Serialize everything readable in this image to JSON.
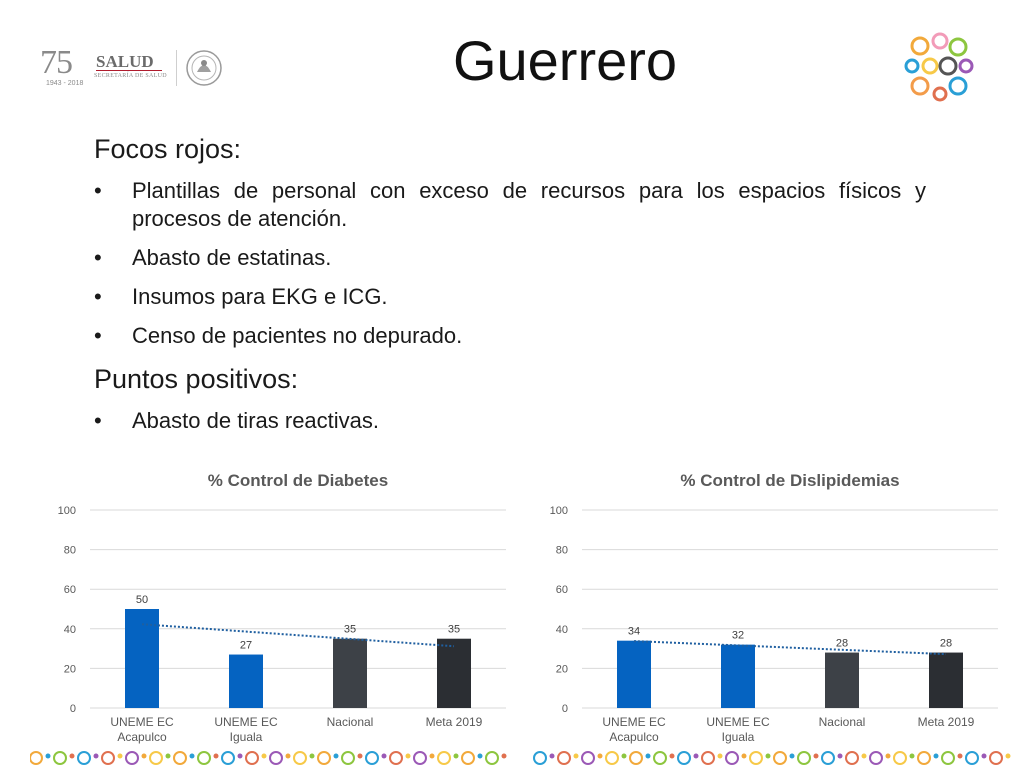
{
  "header": {
    "title": "Guerrero",
    "logo_number": "75",
    "logo_years": "1943 - 2018",
    "logo_salud": "SALUD",
    "logo_secretaria": "SECRETARÍA DE SALUD"
  },
  "focos": {
    "heading": "Focos rojos:",
    "items": [
      "Plantillas de personal con exceso de recursos para los espacios físicos y procesos de atención.",
      "Abasto de estatinas.",
      "Insumos para EKG e ICG.",
      "Censo de pacientes no depurado."
    ]
  },
  "positivos": {
    "heading": "Puntos positivos:",
    "items": [
      "Abasto de tiras reactivas."
    ]
  },
  "chart_data": [
    {
      "type": "bar",
      "title": "% Control de Diabetes",
      "categories": [
        [
          "UNEME EC",
          "Acapulco"
        ],
        [
          "UNEME EC",
          "Iguala"
        ],
        [
          "Nacional"
        ],
        [
          "Meta 2019"
        ]
      ],
      "values": [
        50,
        27,
        35,
        35
      ],
      "colors": [
        "#0563c1",
        "#0563c1",
        "#3d4147",
        "#2b2e33"
      ],
      "ylim": [
        0,
        100
      ],
      "yticks": [
        0,
        20,
        40,
        60,
        80,
        100
      ],
      "trendline": true,
      "trend_color": "#1f5fa0",
      "grid": true
    },
    {
      "type": "bar",
      "title": "% Control de Dislipidemias",
      "categories": [
        [
          "UNEME EC",
          "Acapulco"
        ],
        [
          "UNEME EC",
          "Iguala"
        ],
        [
          "Nacional"
        ],
        [
          "Meta 2019"
        ]
      ],
      "values": [
        34,
        32,
        28,
        28
      ],
      "colors": [
        "#0563c1",
        "#0563c1",
        "#3d4147",
        "#2b2e33"
      ],
      "ylim": [
        0,
        100
      ],
      "yticks": [
        0,
        20,
        40,
        60,
        80,
        100
      ],
      "trendline": true,
      "trend_color": "#1f5fa0",
      "grid": true
    }
  ]
}
